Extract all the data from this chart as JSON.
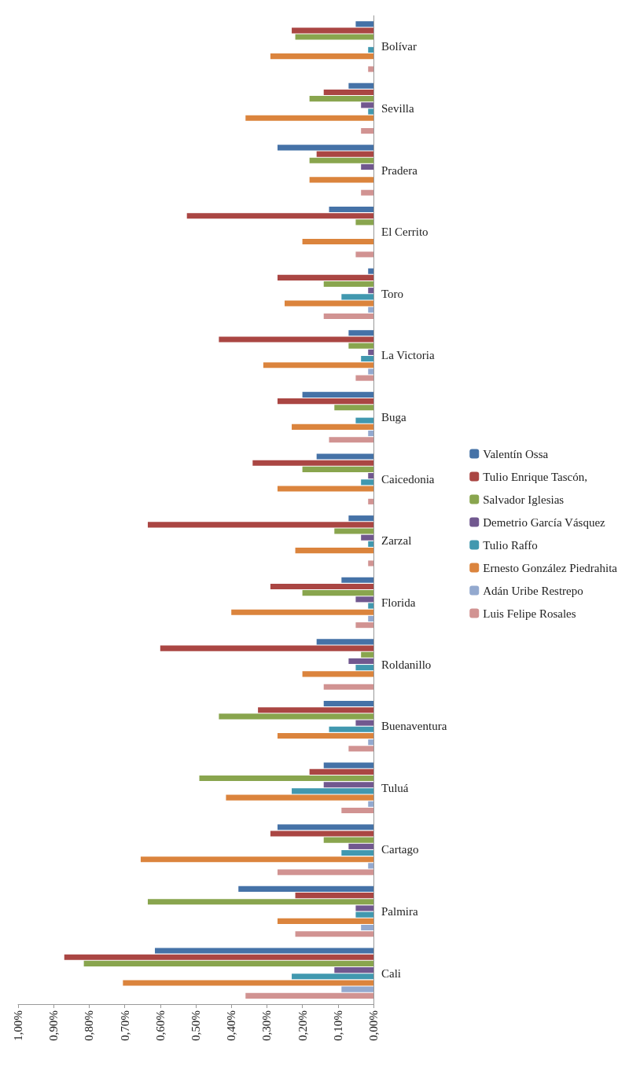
{
  "chart_data": {
    "type": "bar",
    "orientation": "horizontal",
    "categories": [
      "Bolívar",
      "Sevilla",
      "Pradera",
      "El Cerrito",
      "Toro",
      "La Victoria",
      "Buga",
      "Caicedonia",
      "Zarzal",
      "Florida",
      "Roldanillo",
      "Buenaventura",
      "Tuluá",
      "Cartago",
      "Palmira",
      "Cali"
    ],
    "series": [
      {
        "name": "Valentín Ossa",
        "color": "#4572a7",
        "values": [
          0.05,
          0.07,
          0.27,
          0.125,
          0.015,
          0.07,
          0.2,
          0.16,
          0.07,
          0.09,
          0.16,
          0.14,
          0.14,
          0.27,
          0.38,
          0.615
        ]
      },
      {
        "name": "Tulio Enrique Tascón,",
        "color": "#aa4643",
        "values": [
          0.23,
          0.14,
          0.16,
          0.525,
          0.27,
          0.435,
          0.27,
          0.34,
          0.635,
          0.29,
          0.6,
          0.325,
          0.18,
          0.29,
          0.22,
          0.87
        ]
      },
      {
        "name": "Salvador Iglesias",
        "color": "#89a54e",
        "values": [
          0.22,
          0.18,
          0.18,
          0.05,
          0.14,
          0.07,
          0.11,
          0.2,
          0.11,
          0.2,
          0.035,
          0.435,
          0.49,
          0.14,
          0.635,
          0.815
        ]
      },
      {
        "name": "Demetrio García Vásquez",
        "color": "#71588f",
        "values": [
          0,
          0.035,
          0.035,
          0,
          0.015,
          0.015,
          0,
          0.015,
          0.035,
          0.05,
          0.07,
          0.05,
          0.14,
          0.07,
          0.05,
          0.11
        ]
      },
      {
        "name": "Tulio Raffo",
        "color": "#4198af",
        "values": [
          0.015,
          0.015,
          0,
          0,
          0.09,
          0.035,
          0.05,
          0.035,
          0.015,
          0.015,
          0.05,
          0.125,
          0.23,
          0.09,
          0.05,
          0.23
        ]
      },
      {
        "name": "Ernesto González Piedrahita",
        "color": "#db843d",
        "values": [
          0.29,
          0.36,
          0.18,
          0.2,
          0.25,
          0.31,
          0.23,
          0.27,
          0.22,
          0.4,
          0.2,
          0.27,
          0.415,
          0.655,
          0.27,
          0.705
        ]
      },
      {
        "name": "Adán Uribe Restrepo",
        "color": "#93a9cf",
        "values": [
          0,
          0,
          0,
          0,
          0.015,
          0.015,
          0.015,
          0,
          0,
          0.015,
          0,
          0.015,
          0.015,
          0.015,
          0.035,
          0.09
        ]
      },
      {
        "name": "Luis Felipe Rosales",
        "color": "#d19392",
        "values": [
          0.015,
          0.035,
          0.035,
          0.05,
          0.14,
          0.05,
          0.125,
          0.015,
          0.015,
          0.05,
          0.14,
          0.07,
          0.09,
          0.27,
          0.22,
          0.36
        ]
      }
    ],
    "xlim": [
      1,
      0
    ],
    "xticks": [
      {
        "value": 1,
        "label": "1,00%"
      },
      {
        "value": 0.9,
        "label": "0,90%"
      },
      {
        "value": 0.8,
        "label": "0,80%"
      },
      {
        "value": 0.7,
        "label": "0,70%"
      },
      {
        "value": 0.6,
        "label": "0,60%"
      },
      {
        "value": 0.5,
        "label": "0,50%"
      },
      {
        "value": 0.4,
        "label": "0,40%"
      },
      {
        "value": 0.3,
        "label": "0,30%"
      },
      {
        "value": 0.2,
        "label": "0,20%"
      },
      {
        "value": 0.1,
        "label": "0,10%"
      },
      {
        "value": 0,
        "label": "0,00%"
      }
    ],
    "legend": "right",
    "grid": false
  }
}
